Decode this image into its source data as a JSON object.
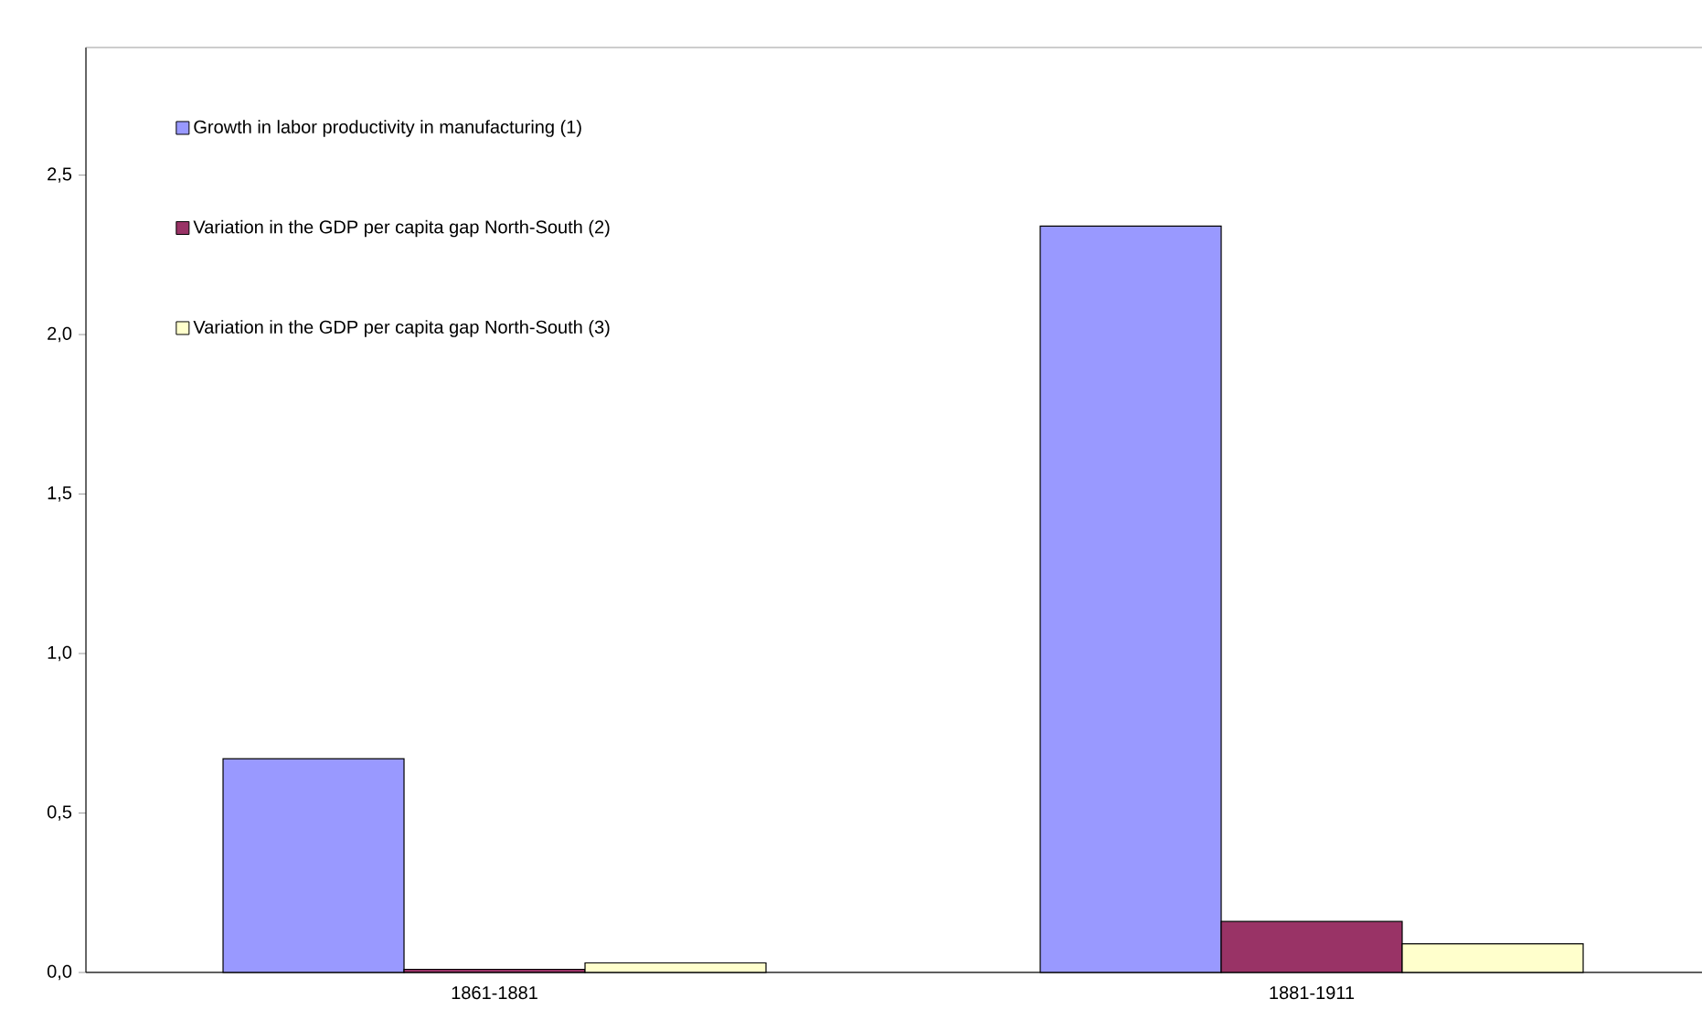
{
  "chart_data": {
    "type": "bar",
    "categories": [
      "1861-1881",
      "1881-1911"
    ],
    "series": [
      {
        "name": "Growth in labor productivity in manufacturing  (1)",
        "color": "#9999ff",
        "values": [
          0.67,
          2.34
        ]
      },
      {
        "name": "Variation in the GDP per capita gap North-South (2)",
        "color": "#993366",
        "values": [
          0.01,
          0.16
        ]
      },
      {
        "name": "Variation in the GDP per capita gap North-South (3)",
        "color": "#ffffcc",
        "values": [
          0.03,
          0.09
        ]
      }
    ],
    "ylim": [
      0,
      2.9
    ],
    "yticks": [
      {
        "value": 0,
        "label": "0,0"
      },
      {
        "value": 0.5,
        "label": "0,5"
      },
      {
        "value": 1,
        "label": "1,0"
      },
      {
        "value": 1.5,
        "label": "1,5"
      },
      {
        "value": 2,
        "label": "2,0"
      },
      {
        "value": 2.5,
        "label": "2,5"
      }
    ],
    "grid": false,
    "legend": "top left"
  }
}
